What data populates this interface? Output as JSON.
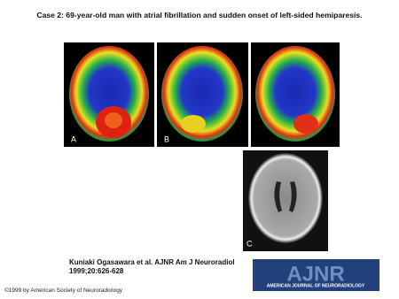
{
  "header": {
    "title": "Case 2: 69-year-old man with atrial fibrillation and sudden onset of left-sided hemiparesis."
  },
  "panels": [
    {
      "label": "A"
    },
    {
      "label": "B"
    },
    {
      "label": "C"
    }
  ],
  "citation": {
    "line1": "Kuniaki Ogasawara et al. AJNR Am J Neuroradiol",
    "line2": "1999;20:626-628"
  },
  "logo": {
    "name": "AJNR",
    "subtitle": "AMERICAN JOURNAL OF NEURORADIOLOGY"
  },
  "copyright": "©1999 by American Society of Neuroradiology"
}
